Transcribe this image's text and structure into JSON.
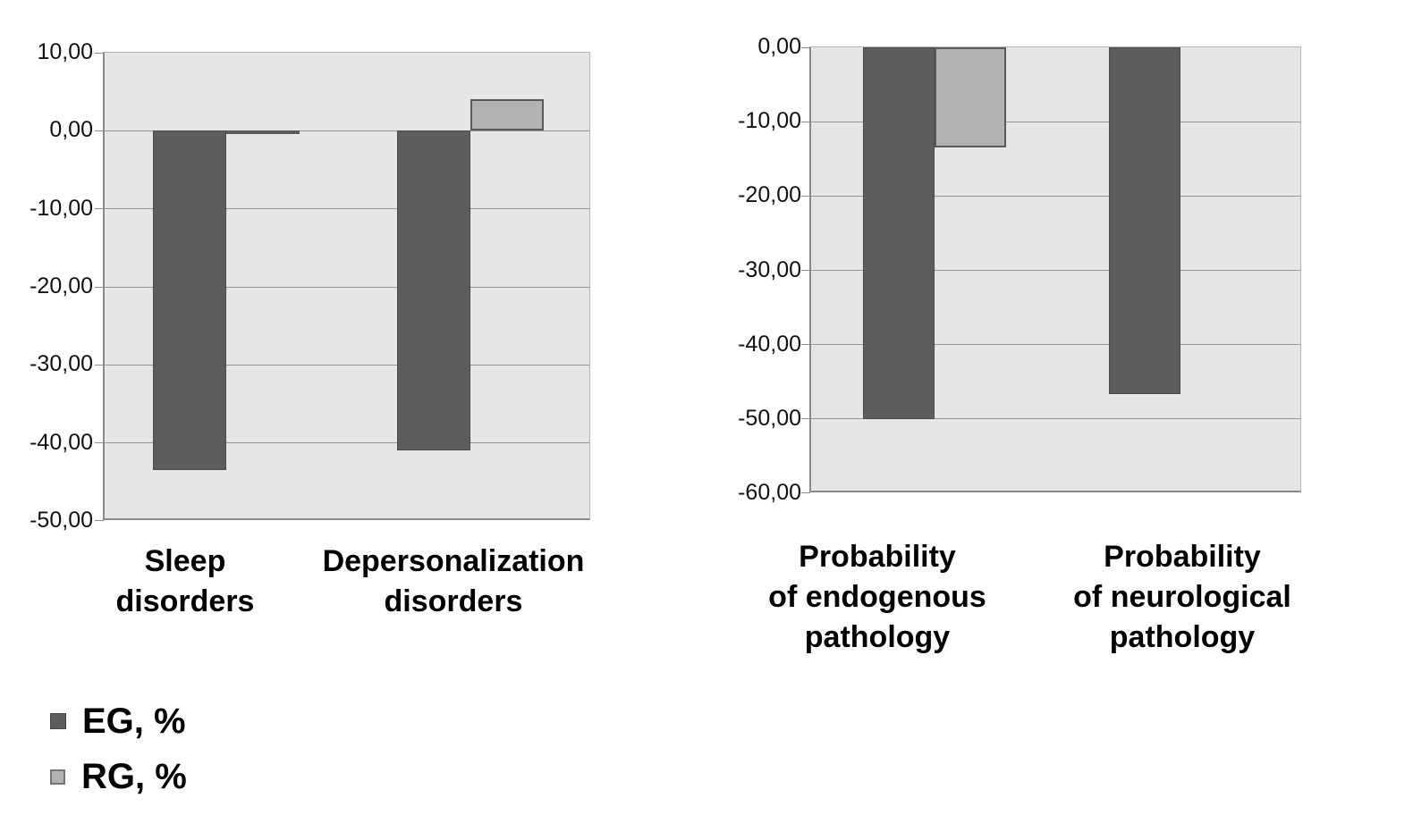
{
  "chart_data": [
    {
      "type": "bar",
      "title": "",
      "xlabel": "",
      "ylabel": "",
      "categories": [
        "Sleep disorders",
        "Depersonalization disorders"
      ],
      "category_label_lines": [
        [
          "Sleep",
          "disorders"
        ],
        [
          "Depersonalization",
          "disorders"
        ]
      ],
      "series": [
        {
          "name": "EG, %",
          "color": "#5d5d5d",
          "border_color": "#4a4a4a",
          "values": [
            -43.5,
            -41.0
          ]
        },
        {
          "name": "RG, %",
          "color": "#b2b2b2",
          "border_color": "#5a5a5a",
          "values": [
            -0.3,
            4.0
          ]
        }
      ],
      "ylim": [
        -50,
        10
      ],
      "ytick_step": 10,
      "ytick_labels": [
        "10,00",
        "0,00",
        "-10,00",
        "-20,00",
        "-30,00",
        "-40,00",
        "-50,00"
      ],
      "grid": true,
      "legend_position": "bottom-left",
      "number_format": "comma-decimal"
    },
    {
      "type": "bar",
      "title": "",
      "xlabel": "",
      "ylabel": "",
      "categories": [
        "Probability of endogenous pathology",
        "Probability of neurological pathology"
      ],
      "category_label_lines": [
        [
          "Probability",
          "of endogenous",
          "pathology"
        ],
        [
          "Probability",
          "of neurological",
          "pathology"
        ]
      ],
      "series": [
        {
          "name": "EG, %",
          "color": "#5d5d5d",
          "border_color": "#4a4a4a",
          "values": [
            -50.0,
            -46.7
          ]
        },
        {
          "name": "RG, %",
          "color": "#b2b2b2",
          "border_color": "#5a5a5a",
          "values": [
            -13.5,
            0.0
          ]
        }
      ],
      "ylim": [
        -60,
        0
      ],
      "ytick_step": 10,
      "ytick_labels": [
        "0,00",
        "-10,00",
        "-20,00",
        "-30,00",
        "-40,00",
        "-50,00",
        "-60,00"
      ],
      "grid": true,
      "legend_position": "bottom-left",
      "number_format": "comma-decimal"
    }
  ],
  "legend": {
    "items": [
      {
        "label": "EG, %",
        "swatch_color": "#5d5d5d"
      },
      {
        "label": "RG, %",
        "swatch_color": "#b2b2b2"
      }
    ]
  },
  "style": {
    "plot_background": "#e6e6e6",
    "gridline_color": "#979797",
    "axis_line_color": "#8a8a8a",
    "text_color": "#000000",
    "page_background": "#ffffff"
  }
}
